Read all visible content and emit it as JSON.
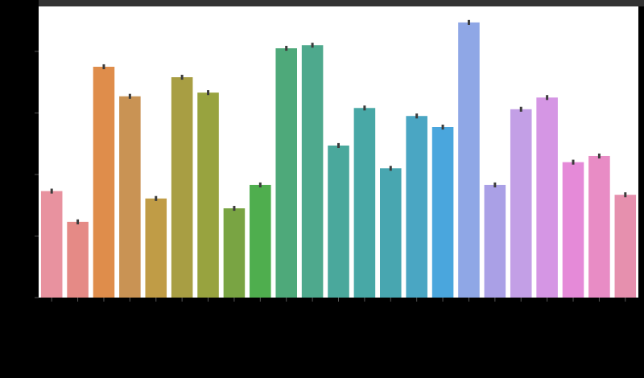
{
  "chart_data": {
    "type": "bar",
    "categories": [
      null,
      null,
      null,
      null,
      null,
      null,
      null,
      null,
      null,
      null,
      null,
      null,
      null,
      null,
      null,
      null,
      null,
      null,
      null,
      null,
      null,
      null,
      null
    ],
    "values": [
      1.73,
      1.23,
      3.75,
      3.27,
      1.61,
      3.58,
      3.33,
      1.45,
      1.83,
      4.05,
      4.1,
      2.47,
      3.08,
      2.1,
      2.95,
      2.77,
      4.47,
      1.83,
      3.06,
      3.25,
      2.2,
      2.3,
      1.67
    ],
    "errors": [
      0.04,
      0.04,
      0.04,
      0.04,
      0.04,
      0.04,
      0.04,
      0.04,
      0.04,
      0.04,
      0.04,
      0.04,
      0.04,
      0.04,
      0.04,
      0.04,
      0.04,
      0.04,
      0.04,
      0.04,
      0.04,
      0.04,
      0.04
    ],
    "colors": [
      "#e8929f",
      "#e58a86",
      "#df8d4b",
      "#c99354",
      "#c09c46",
      "#a89e43",
      "#98a33f",
      "#79a443",
      "#4fae4e",
      "#4ea97a",
      "#4ea98d",
      "#4aa89c",
      "#48a8a6",
      "#48a6b0",
      "#4aa6c3",
      "#4aa6dd",
      "#8fa7e6",
      "#aaa0e6",
      "#c39fe6",
      "#d596e4",
      "#e58ad8",
      "#e88cc5",
      "#e690ae"
    ],
    "ylim": [
      0,
      4.73
    ],
    "yticks": [
      0,
      1,
      2,
      3,
      4
    ]
  }
}
